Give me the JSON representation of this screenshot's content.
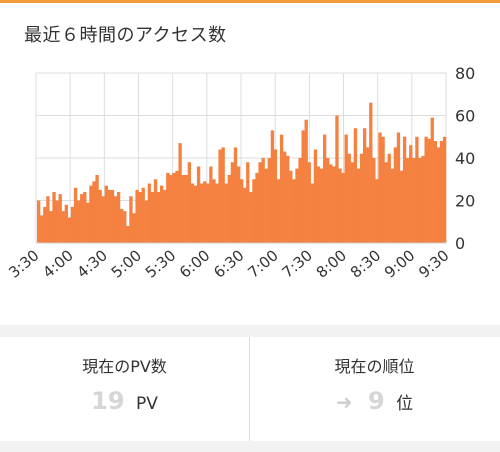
{
  "colors": {
    "accent": "#f39c3c",
    "bar": "#f58140",
    "grid": "#dddddd",
    "axis_text": "#333333"
  },
  "chart_data": {
    "type": "bar",
    "title": "最近６時間のアクセス数",
    "x_tick_labels": [
      "3:30",
      "4:00",
      "4:30",
      "5:00",
      "5:30",
      "6:00",
      "6:30",
      "7:00",
      "7:30",
      "8:00",
      "8:30",
      "9:00",
      "9:30"
    ],
    "y_tick_labels": [
      "0",
      "20",
      "40",
      "60",
      "80"
    ],
    "ylim": [
      0,
      80
    ],
    "y_axis_side": "right",
    "grid": true,
    "values": [
      20,
      13,
      17,
      22,
      15,
      24,
      20,
      23,
      15,
      18,
      12,
      17,
      26,
      20,
      23,
      24,
      19,
      27,
      29,
      32,
      25,
      22,
      27,
      25,
      25,
      22,
      24,
      16,
      15,
      8,
      22,
      14,
      25,
      24,
      26,
      20,
      28,
      24,
      30,
      24,
      27,
      25,
      33,
      32,
      33,
      34,
      47,
      32,
      32,
      38,
      28,
      27,
      36,
      28,
      29,
      28,
      36,
      30,
      28,
      44,
      45,
      28,
      32,
      38,
      45,
      36,
      30,
      26,
      38,
      24,
      30,
      33,
      38,
      40,
      35,
      40,
      53,
      44,
      30,
      51,
      43,
      41,
      34,
      30,
      35,
      40,
      53,
      58,
      38,
      28,
      44,
      36,
      35,
      51,
      40,
      37,
      36,
      60,
      35,
      33,
      51,
      42,
      38,
      54,
      35,
      42,
      54,
      45,
      66,
      40,
      30,
      52,
      50,
      38,
      42,
      35,
      45,
      52,
      34,
      50,
      40,
      46,
      40,
      50,
      40,
      41,
      50,
      49,
      59,
      48,
      45,
      48,
      50
    ]
  },
  "stats": {
    "pv": {
      "label": "現在のPV数",
      "value": "19",
      "unit": "PV"
    },
    "rank": {
      "label": "現在の順位",
      "arrow": "➜",
      "value": "9",
      "unit": "位"
    }
  }
}
